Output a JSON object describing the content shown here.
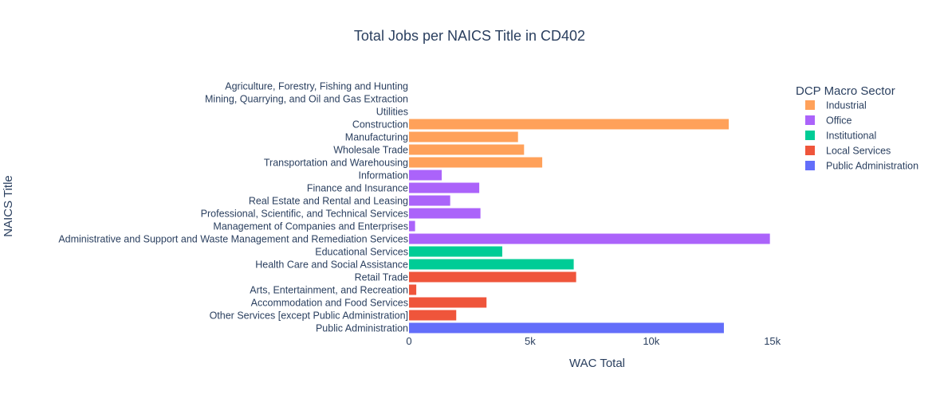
{
  "chart_data": {
    "type": "bar",
    "orientation": "horizontal",
    "title": "Total Jobs per NAICS Title in CD402",
    "xlabel": "WAC Total",
    "ylabel": "NAICS Title",
    "xlim": [
      0,
      15800
    ],
    "x_ticks": [
      {
        "value": 0,
        "label": "0"
      },
      {
        "value": 5000,
        "label": "5k"
      },
      {
        "value": 10000,
        "label": "10k"
      },
      {
        "value": 15000,
        "label": "15k"
      }
    ],
    "grid": false,
    "legend": {
      "title": "DCP Macro Sector",
      "placement": "right",
      "items": [
        {
          "name": "Industrial",
          "color": "#FFA15A"
        },
        {
          "name": "Office",
          "color": "#AB63FA"
        },
        {
          "name": "Institutional",
          "color": "#00CC96"
        },
        {
          "name": "Local Services",
          "color": "#EF553B"
        },
        {
          "name": "Public Administration",
          "color": "#636EFA"
        }
      ]
    },
    "bars": [
      {
        "category": "Agriculture, Forestry, Fishing and Hunting",
        "value": 0,
        "sector": "Industrial"
      },
      {
        "category": "Mining, Quarrying, and Oil and Gas Extraction",
        "value": 0,
        "sector": "Industrial"
      },
      {
        "category": "Utilities",
        "value": 0,
        "sector": "Industrial"
      },
      {
        "category": "Construction",
        "value": 13200,
        "sector": "Industrial"
      },
      {
        "category": "Manufacturing",
        "value": 4500,
        "sector": "Industrial"
      },
      {
        "category": "Wholesale Trade",
        "value": 4750,
        "sector": "Industrial"
      },
      {
        "category": "Transportation and Warehousing",
        "value": 5500,
        "sector": "Industrial"
      },
      {
        "category": "Information",
        "value": 1350,
        "sector": "Office"
      },
      {
        "category": "Finance and Insurance",
        "value": 2900,
        "sector": "Office"
      },
      {
        "category": "Real Estate and Rental and Leasing",
        "value": 1700,
        "sector": "Office"
      },
      {
        "category": "Professional, Scientific, and Technical Services",
        "value": 2950,
        "sector": "Office"
      },
      {
        "category": "Management of Companies and Enterprises",
        "value": 250,
        "sector": "Office"
      },
      {
        "category": "Administrative and Support and Waste Management and Remediation Services",
        "value": 14900,
        "sector": "Office"
      },
      {
        "category": "Educational Services",
        "value": 3850,
        "sector": "Institutional"
      },
      {
        "category": "Health Care and Social Assistance",
        "value": 6800,
        "sector": "Institutional"
      },
      {
        "category": "Retail Trade",
        "value": 6900,
        "sector": "Local Services"
      },
      {
        "category": "Arts, Entertainment, and Recreation",
        "value": 300,
        "sector": "Local Services"
      },
      {
        "category": "Accommodation and Food Services",
        "value": 3200,
        "sector": "Local Services"
      },
      {
        "category": "Other Services [except Public Administration]",
        "value": 1950,
        "sector": "Local Services"
      },
      {
        "category": "Public Administration",
        "value": 13000,
        "sector": "Public Administration"
      }
    ]
  }
}
